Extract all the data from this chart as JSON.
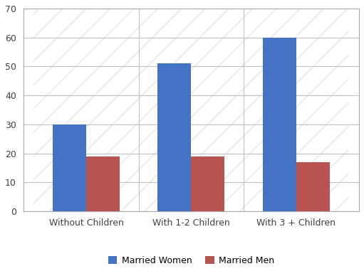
{
  "categories": [
    "Without Children",
    "With 1-2 Children",
    "With 3 + Children"
  ],
  "married_women": [
    30,
    51,
    60
  ],
  "married_men": [
    19,
    19,
    17
  ],
  "women_color": "#4472C4",
  "men_color": "#B85450",
  "ylim": [
    0,
    70
  ],
  "yticks": [
    0,
    10,
    20,
    30,
    40,
    50,
    60,
    70
  ],
  "legend_labels": [
    "Married Women",
    "Married Men"
  ],
  "bar_width": 0.32,
  "grid_color": "#C0C0C0",
  "background_color": "#FFFFFF",
  "plot_bg_color": "#E8E8E8"
}
